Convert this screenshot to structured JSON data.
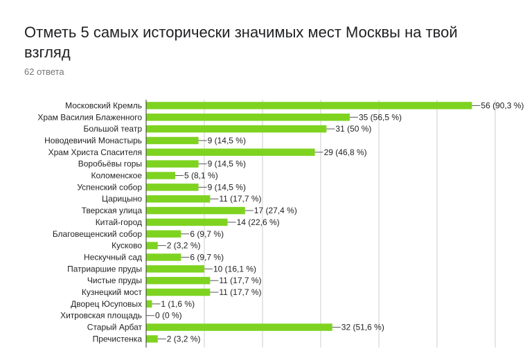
{
  "form": {
    "title": "Отметь 5 самых исторически значимых мест Москвы на твой взгляд",
    "responses": "62 ответа"
  },
  "colors": {
    "bar": "#7ed321",
    "grid": "#cccccc",
    "axis": "#333333"
  },
  "chart_data": {
    "type": "bar",
    "orientation": "horizontal",
    "categories": [
      "Московский Кремль",
      "Храм Василия Блаженного",
      "Большой театр",
      "Новодевичий Монастырь",
      "Храм Христа Спасителя",
      "Воробьёвы горы",
      "Коломенское",
      "Успенский собор",
      "Царицыно",
      "Тверская улица",
      "Китай-город",
      "Благовещенский собор",
      "Кусково",
      "Нескучный сад",
      "Патриаршие пруды",
      "Чистые пруды",
      "Кузнецкий мост",
      "Дворец Юсуповых",
      "Хитровская площадь",
      "Старый Арбат",
      "Пречистенка"
    ],
    "values": [
      56,
      35,
      31,
      9,
      29,
      9,
      5,
      9,
      11,
      17,
      14,
      6,
      2,
      6,
      10,
      11,
      11,
      1,
      0,
      32,
      2
    ],
    "labels": [
      "56 (90,3 %)",
      "35 (56,5 %)",
      "31 (50 %)",
      "9 (14,5 %)",
      "29 (46,8 %)",
      "9 (14,5 %)",
      "5 (8,1 %)",
      "9 (14,5 %)",
      "11 (17,7 %)",
      "17 (27,4 %)",
      "14 (22,6 %)",
      "6 (9,7 %)",
      "2 (3,2 %)",
      "6 (9,7 %)",
      "10 (16,1 %)",
      "11 (17,7 %)",
      "11 (17,7 %)",
      "1 (1,6 %)",
      "0 (0 %)",
      "32 (51,6 %)",
      "2 (3,2 %)"
    ],
    "xlim": [
      0,
      60
    ],
    "gridlines": [
      10,
      20,
      30,
      40,
      50,
      60
    ],
    "grid": true,
    "legend": "none"
  }
}
